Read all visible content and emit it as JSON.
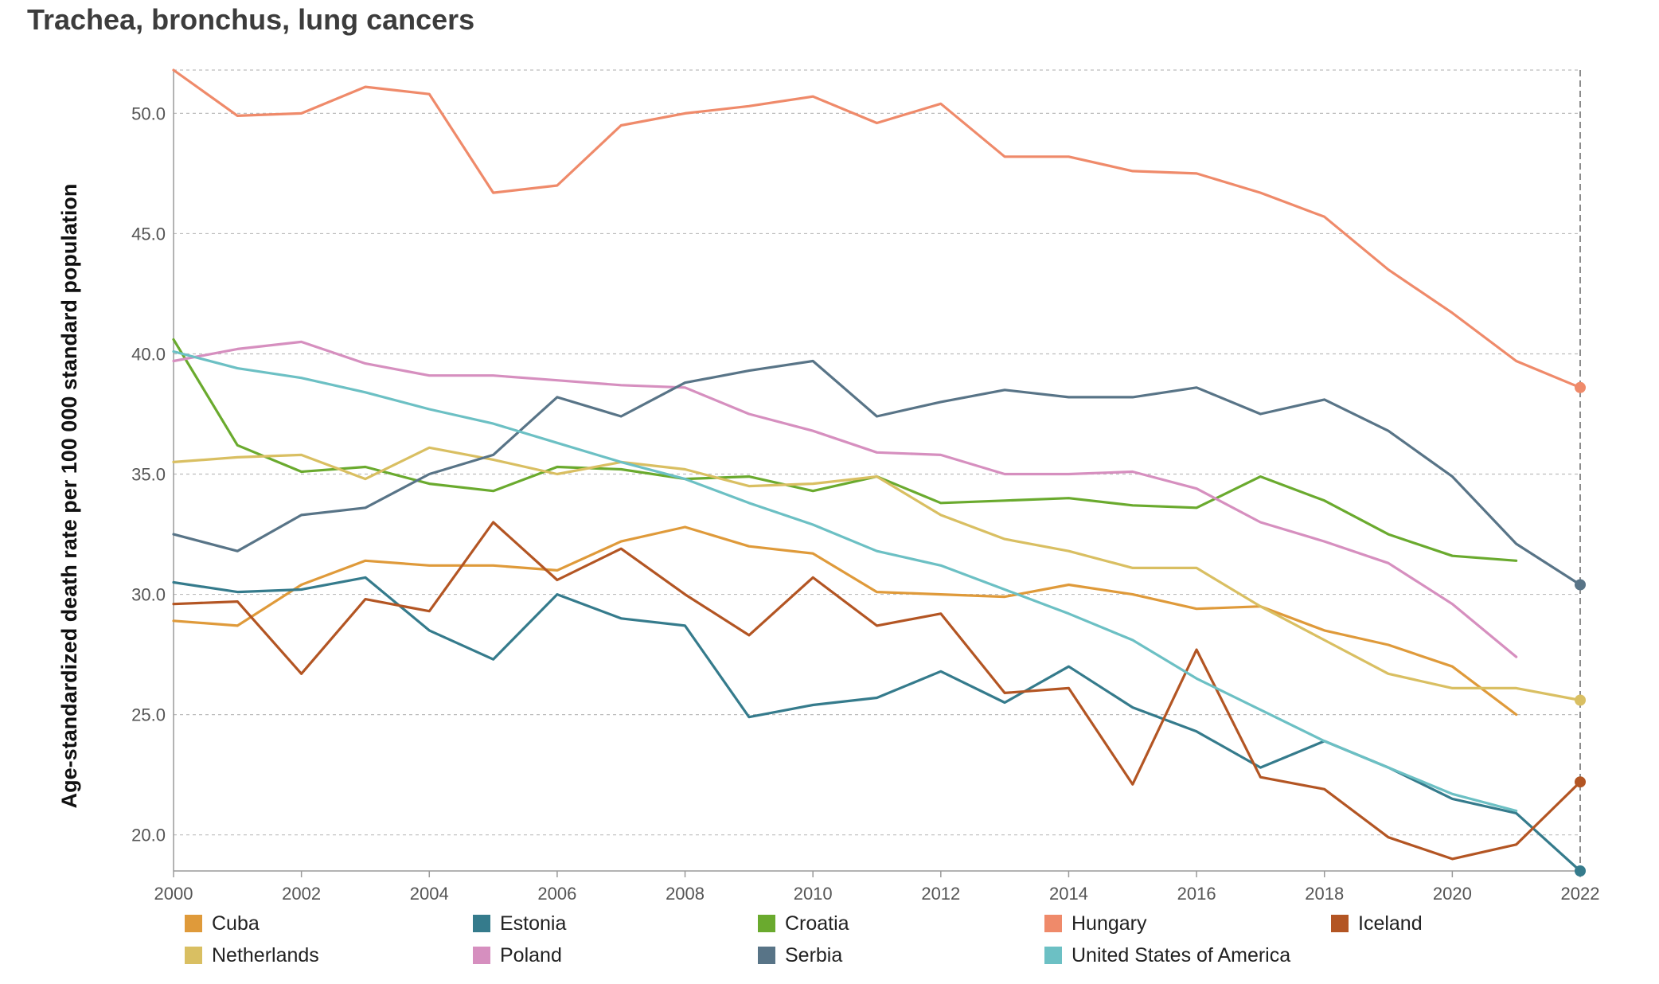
{
  "title": "Trachea, bronchus, lung cancers",
  "chart_data": {
    "type": "line",
    "title": "Trachea, bronchus, lung cancers",
    "xlabel": "",
    "ylabel": "Age-standardized death rate per 100 000 standard population",
    "xlim": [
      2000,
      2022
    ],
    "ylim": [
      18.5,
      51.8
    ],
    "x_ticks": [
      "2000",
      "2002",
      "2004",
      "2006",
      "2008",
      "2010",
      "2012",
      "2014",
      "2016",
      "2018",
      "2020",
      "2022"
    ],
    "y_ticks": [
      "20.0",
      "25.0",
      "30.0",
      "35.0",
      "40.0",
      "45.0",
      "50.0"
    ],
    "grid": true,
    "legend_position": "bottom",
    "highlight_x": 2022,
    "series": [
      {
        "name": "Cuba",
        "color": "#df9a3a",
        "x": [
          2000,
          2001,
          2002,
          2003,
          2004,
          2005,
          2006,
          2007,
          2008,
          2009,
          2010,
          2011,
          2012,
          2013,
          2014,
          2015,
          2016,
          2017,
          2018,
          2019,
          2020,
          2021
        ],
        "values": [
          28.9,
          28.7,
          30.4,
          31.4,
          31.2,
          31.2,
          31.0,
          32.2,
          32.8,
          32.0,
          31.7,
          30.1,
          30.0,
          29.9,
          30.4,
          30.0,
          29.4,
          29.5,
          28.5,
          27.9,
          27.0,
          25.0
        ]
      },
      {
        "name": "Estonia",
        "color": "#357b8c",
        "x": [
          2000,
          2001,
          2002,
          2003,
          2004,
          2005,
          2006,
          2007,
          2008,
          2009,
          2010,
          2011,
          2012,
          2013,
          2014,
          2015,
          2016,
          2017,
          2018,
          2019,
          2020,
          2021,
          2022
        ],
        "values": [
          30.5,
          30.1,
          30.2,
          30.7,
          28.5,
          27.3,
          30.0,
          29.0,
          28.7,
          24.9,
          25.4,
          25.7,
          26.8,
          25.5,
          27.0,
          25.3,
          24.3,
          22.8,
          23.9,
          22.8,
          21.5,
          20.9,
          18.5
        ]
      },
      {
        "name": "Croatia",
        "color": "#6aaa2e",
        "x": [
          2000,
          2001,
          2002,
          2003,
          2004,
          2005,
          2006,
          2007,
          2008,
          2009,
          2010,
          2011,
          2012,
          2013,
          2014,
          2015,
          2016,
          2017,
          2018,
          2019,
          2020,
          2021
        ],
        "values": [
          40.6,
          36.2,
          35.1,
          35.3,
          34.6,
          34.3,
          35.3,
          35.2,
          34.8,
          34.9,
          34.3,
          34.9,
          33.8,
          33.9,
          34.0,
          33.7,
          33.6,
          34.9,
          33.9,
          32.5,
          31.6,
          31.4
        ]
      },
      {
        "name": "Hungary",
        "color": "#ef8a6a",
        "x": [
          2000,
          2001,
          2002,
          2003,
          2004,
          2005,
          2006,
          2007,
          2008,
          2009,
          2010,
          2011,
          2012,
          2013,
          2014,
          2015,
          2016,
          2017,
          2018,
          2019,
          2020,
          2021,
          2022
        ],
        "values": [
          51.8,
          49.9,
          50.0,
          51.1,
          50.8,
          46.7,
          47.0,
          49.5,
          50.0,
          50.3,
          50.7,
          49.6,
          50.4,
          48.2,
          48.2,
          47.6,
          47.5,
          46.7,
          45.7,
          43.5,
          41.7,
          39.7,
          38.6
        ]
      },
      {
        "name": "Iceland",
        "color": "#b35523",
        "x": [
          2000,
          2001,
          2002,
          2003,
          2004,
          2005,
          2006,
          2007,
          2008,
          2009,
          2010,
          2011,
          2012,
          2013,
          2014,
          2015,
          2016,
          2017,
          2018,
          2019,
          2020,
          2021,
          2022
        ],
        "values": [
          29.6,
          29.7,
          26.7,
          29.8,
          29.3,
          33.0,
          30.6,
          31.9,
          30.0,
          28.3,
          30.7,
          28.7,
          29.2,
          25.9,
          26.1,
          22.1,
          27.7,
          22.4,
          21.9,
          19.9,
          19.0,
          19.6,
          22.2
        ]
      },
      {
        "name": "Netherlands",
        "color": "#d9bf62",
        "x": [
          2000,
          2001,
          2002,
          2003,
          2004,
          2005,
          2006,
          2007,
          2008,
          2009,
          2010,
          2011,
          2012,
          2013,
          2014,
          2015,
          2016,
          2017,
          2018,
          2019,
          2020,
          2021,
          2022
        ],
        "values": [
          35.5,
          35.7,
          35.8,
          34.8,
          36.1,
          35.6,
          35.0,
          35.5,
          35.2,
          34.5,
          34.6,
          34.9,
          33.3,
          32.3,
          31.8,
          31.1,
          31.1,
          29.5,
          28.1,
          26.7,
          26.1,
          26.1,
          25.6
        ]
      },
      {
        "name": "Poland",
        "color": "#d68fbf",
        "x": [
          2000,
          2001,
          2002,
          2003,
          2004,
          2005,
          2006,
          2007,
          2008,
          2009,
          2010,
          2011,
          2012,
          2013,
          2014,
          2015,
          2016,
          2017,
          2018,
          2019,
          2020,
          2021
        ],
        "values": [
          39.7,
          40.2,
          40.5,
          39.6,
          39.1,
          39.1,
          38.9,
          38.7,
          38.6,
          37.5,
          36.8,
          35.9,
          35.8,
          35.0,
          35.0,
          35.1,
          34.4,
          33.0,
          32.2,
          31.3,
          29.6,
          27.4
        ]
      },
      {
        "name": "Serbia",
        "color": "#587487",
        "x": [
          2000,
          2001,
          2002,
          2003,
          2004,
          2005,
          2006,
          2007,
          2008,
          2009,
          2010,
          2011,
          2012,
          2013,
          2014,
          2015,
          2016,
          2017,
          2018,
          2019,
          2020,
          2021,
          2022
        ],
        "values": [
          32.5,
          31.8,
          33.3,
          33.6,
          35.0,
          35.8,
          38.2,
          37.4,
          38.8,
          39.3,
          39.7,
          37.4,
          38.0,
          38.5,
          38.2,
          38.2,
          38.6,
          37.5,
          38.1,
          36.8,
          34.9,
          32.1,
          30.4
        ]
      },
      {
        "name": "United States of America",
        "color": "#6cc0c4",
        "x": [
          2000,
          2001,
          2002,
          2003,
          2004,
          2005,
          2006,
          2007,
          2008,
          2009,
          2010,
          2011,
          2012,
          2013,
          2014,
          2015,
          2016,
          2017,
          2018,
          2019,
          2020,
          2021
        ],
        "values": [
          40.1,
          39.4,
          39.0,
          38.4,
          37.7,
          37.1,
          36.3,
          35.5,
          34.8,
          33.8,
          32.9,
          31.8,
          31.2,
          30.2,
          29.2,
          28.1,
          26.5,
          25.2,
          23.9,
          22.8,
          21.7,
          21.0
        ]
      }
    ]
  }
}
